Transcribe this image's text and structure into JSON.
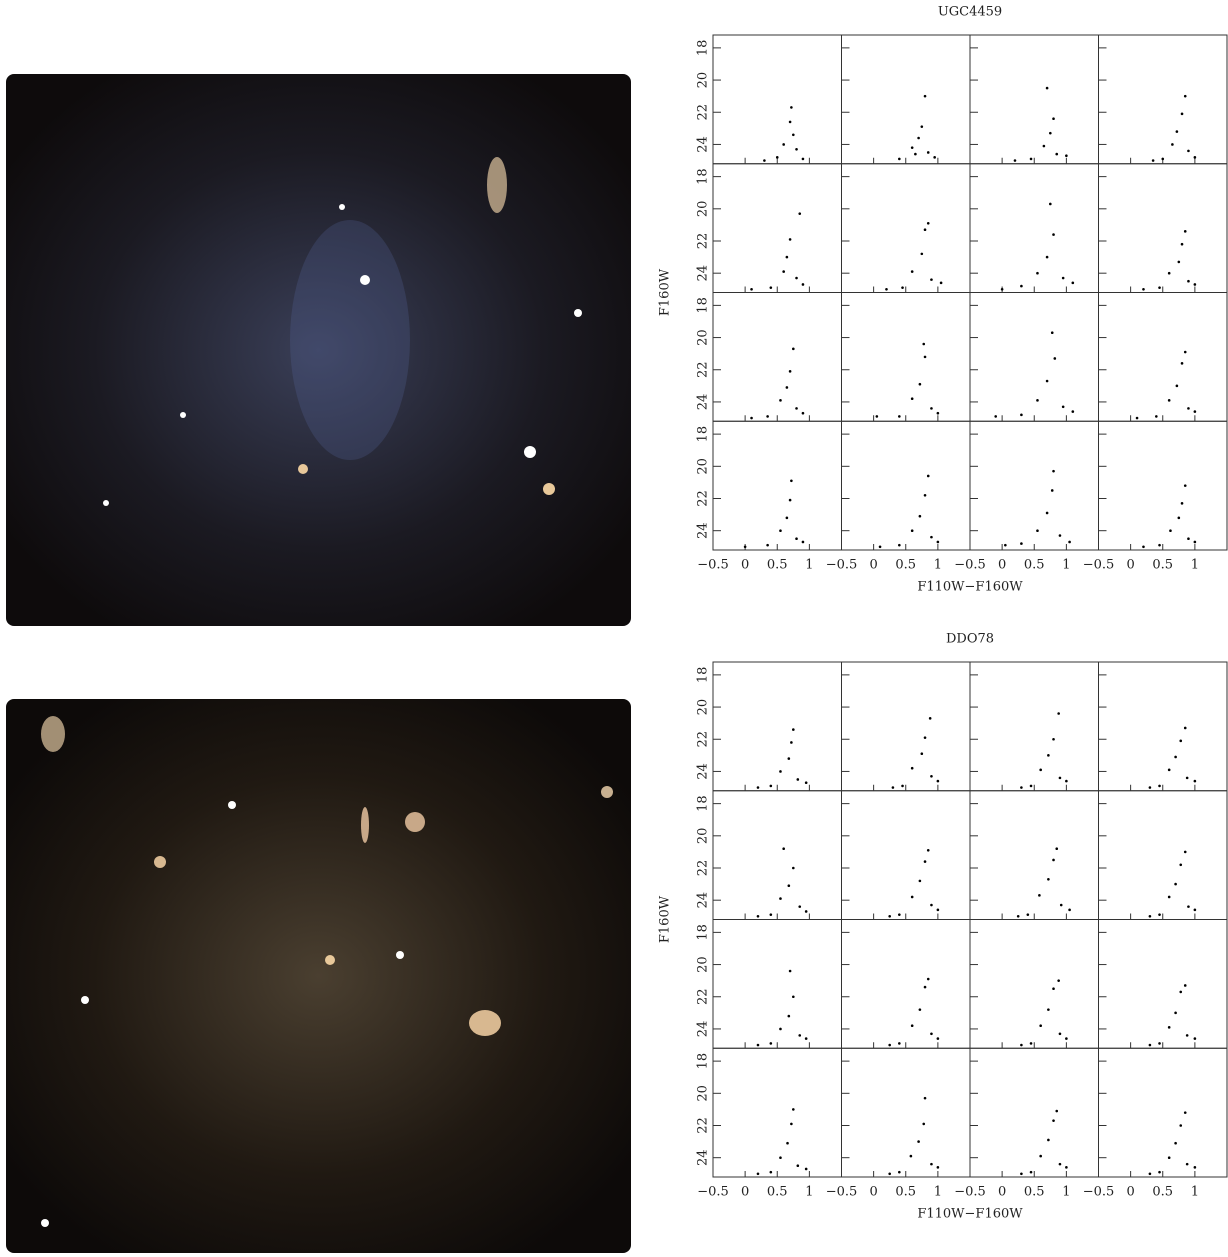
{
  "chart_data": [
    {
      "type": "scatter",
      "title": "UGC4459",
      "xlabel": "F110W−F160W",
      "ylabel": "F160W",
      "xlim": [
        -0.5,
        1.5
      ],
      "ylim": [
        17.2,
        25.2
      ],
      "y_inverted": true,
      "xticks": [
        {
          "value": -0.5,
          "label": "−0.5"
        },
        0,
        0.5,
        1
      ],
      "yticks": [
        18,
        20,
        22,
        24
      ],
      "panels": [
        {
          "x": [
            0.7,
            0.75,
            0.6,
            0.8,
            0.5,
            0.9,
            0.3,
            0.72
          ],
          "y": [
            22.6,
            23.4,
            24.0,
            24.3,
            24.8,
            24.9,
            25.0,
            21.7
          ]
        },
        {
          "x": [
            0.75,
            0.7,
            0.6,
            0.85,
            0.4,
            0.95,
            0.65,
            0.8
          ],
          "y": [
            22.9,
            23.6,
            24.2,
            24.5,
            24.9,
            24.8,
            24.6,
            21.0
          ]
        },
        {
          "x": [
            0.8,
            0.75,
            0.65,
            0.85,
            0.45,
            1.0,
            0.2,
            0.7
          ],
          "y": [
            22.4,
            23.3,
            24.1,
            24.6,
            24.9,
            24.7,
            25.0,
            20.5
          ]
        },
        {
          "x": [
            0.8,
            0.72,
            0.65,
            0.9,
            0.5,
            1.0,
            0.35,
            0.85
          ],
          "y": [
            22.1,
            23.2,
            24.0,
            24.4,
            24.9,
            24.8,
            25.0,
            21.0
          ]
        },
        {
          "x": [
            0.7,
            0.65,
            0.6,
            0.8,
            0.4,
            0.9,
            0.1,
            0.85
          ],
          "y": [
            21.9,
            23.0,
            23.9,
            24.3,
            24.9,
            24.7,
            25.0,
            20.3
          ]
        },
        {
          "x": [
            0.8,
            0.75,
            0.6,
            0.9,
            0.45,
            1.05,
            0.2,
            0.85
          ],
          "y": [
            21.3,
            22.8,
            23.9,
            24.4,
            24.9,
            24.6,
            25.0,
            20.9
          ]
        },
        {
          "x": [
            0.8,
            0.7,
            0.55,
            0.95,
            0.3,
            1.1,
            0.0,
            0.75
          ],
          "y": [
            21.6,
            23.0,
            24.0,
            24.3,
            24.8,
            24.6,
            25.0,
            19.7
          ]
        },
        {
          "x": [
            0.8,
            0.75,
            0.6,
            0.9,
            0.45,
            1.0,
            0.2,
            0.85
          ],
          "y": [
            22.2,
            23.3,
            24.0,
            24.5,
            24.9,
            24.7,
            25.0,
            21.4
          ]
        },
        {
          "x": [
            0.7,
            0.65,
            0.55,
            0.8,
            0.35,
            0.9,
            0.1,
            0.75
          ],
          "y": [
            22.1,
            23.1,
            23.9,
            24.4,
            24.9,
            24.7,
            25.0,
            20.7
          ]
        },
        {
          "x": [
            0.8,
            0.72,
            0.6,
            0.9,
            0.4,
            1.0,
            0.05,
            0.78
          ],
          "y": [
            21.2,
            22.9,
            23.8,
            24.4,
            24.9,
            24.7,
            24.9,
            20.4
          ]
        },
        {
          "x": [
            0.82,
            0.7,
            0.55,
            0.95,
            0.3,
            1.1,
            -0.1,
            0.78
          ],
          "y": [
            21.3,
            22.7,
            23.9,
            24.3,
            24.8,
            24.6,
            24.9,
            19.7
          ]
        },
        {
          "x": [
            0.8,
            0.72,
            0.6,
            0.9,
            0.4,
            1.0,
            0.1,
            0.85
          ],
          "y": [
            21.6,
            23.0,
            23.9,
            24.4,
            24.9,
            24.6,
            25.0,
            20.9
          ]
        },
        {
          "x": [
            0.7,
            0.65,
            0.55,
            0.8,
            0.35,
            0.9,
            0.0,
            0.72
          ],
          "y": [
            22.1,
            23.2,
            24.0,
            24.5,
            24.9,
            24.7,
            25.0,
            20.9
          ]
        },
        {
          "x": [
            0.8,
            0.72,
            0.6,
            0.9,
            0.4,
            1.0,
            0.1,
            0.85
          ],
          "y": [
            21.8,
            23.1,
            24.0,
            24.4,
            24.9,
            24.7,
            25.0,
            20.6
          ]
        },
        {
          "x": [
            0.78,
            0.7,
            0.55,
            0.9,
            0.3,
            1.05,
            0.05,
            0.8
          ],
          "y": [
            21.5,
            22.9,
            24.0,
            24.3,
            24.8,
            24.7,
            24.9,
            20.3
          ]
        },
        {
          "x": [
            0.8,
            0.75,
            0.62,
            0.9,
            0.45,
            1.0,
            0.2,
            0.85
          ],
          "y": [
            22.3,
            23.2,
            24.0,
            24.5,
            24.9,
            24.7,
            25.0,
            21.2
          ]
        }
      ]
    },
    {
      "type": "scatter",
      "title": "DDO78",
      "xlabel": "F110W−F160W",
      "ylabel": "F160W",
      "xlim": [
        -0.5,
        1.5
      ],
      "ylim": [
        17.2,
        25.2
      ],
      "y_inverted": true,
      "xticks": [
        {
          "value": -0.5,
          "label": "−0.5"
        },
        0,
        0.5,
        1
      ],
      "yticks": [
        18,
        20,
        22,
        24
      ],
      "panels": [
        {
          "x": [
            0.72,
            0.68,
            0.55,
            0.82,
            0.4,
            0.95,
            0.2,
            0.75
          ],
          "y": [
            22.2,
            23.2,
            24.0,
            24.5,
            24.9,
            24.7,
            25.0,
            21.4
          ]
        },
        {
          "x": [
            0.8,
            0.75,
            0.6,
            0.9,
            0.45,
            1.0,
            0.3,
            0.88
          ],
          "y": [
            21.9,
            22.9,
            23.8,
            24.3,
            24.9,
            24.6,
            25.0,
            20.7
          ]
        },
        {
          "x": [
            0.8,
            0.72,
            0.6,
            0.9,
            0.45,
            1.0,
            0.3,
            0.88
          ],
          "y": [
            22.0,
            23.0,
            23.9,
            24.4,
            24.9,
            24.6,
            25.0,
            20.4
          ]
        },
        {
          "x": [
            0.78,
            0.7,
            0.6,
            0.88,
            0.45,
            1.0,
            0.3,
            0.85
          ],
          "y": [
            22.1,
            23.1,
            23.9,
            24.4,
            24.9,
            24.6,
            25.0,
            21.3
          ]
        },
        {
          "x": [
            0.75,
            0.68,
            0.55,
            0.85,
            0.4,
            0.95,
            0.2,
            0.6
          ],
          "y": [
            22.0,
            23.1,
            23.9,
            24.4,
            24.9,
            24.7,
            25.0,
            20.8
          ]
        },
        {
          "x": [
            0.8,
            0.72,
            0.6,
            0.9,
            0.4,
            1.0,
            0.25,
            0.85
          ],
          "y": [
            21.6,
            22.8,
            23.8,
            24.3,
            24.9,
            24.6,
            25.0,
            20.9
          ]
        },
        {
          "x": [
            0.8,
            0.72,
            0.58,
            0.92,
            0.4,
            1.05,
            0.25,
            0.85
          ],
          "y": [
            21.5,
            22.7,
            23.7,
            24.3,
            24.9,
            24.6,
            25.0,
            20.8
          ]
        },
        {
          "x": [
            0.78,
            0.7,
            0.6,
            0.9,
            0.45,
            1.0,
            0.3,
            0.85
          ],
          "y": [
            21.8,
            23.0,
            23.8,
            24.4,
            24.9,
            24.6,
            25.0,
            21.0
          ]
        },
        {
          "x": [
            0.75,
            0.68,
            0.55,
            0.85,
            0.4,
            0.95,
            0.2,
            0.7
          ],
          "y": [
            22.0,
            23.2,
            24.0,
            24.4,
            24.9,
            24.6,
            25.0,
            20.4
          ]
        },
        {
          "x": [
            0.8,
            0.72,
            0.6,
            0.9,
            0.4,
            1.0,
            0.25,
            0.85
          ],
          "y": [
            21.4,
            22.8,
            23.8,
            24.3,
            24.9,
            24.6,
            25.0,
            20.9
          ]
        },
        {
          "x": [
            0.8,
            0.72,
            0.6,
            0.9,
            0.45,
            1.0,
            0.3,
            0.88
          ],
          "y": [
            21.5,
            22.8,
            23.8,
            24.3,
            24.9,
            24.6,
            25.0,
            21.0
          ]
        },
        {
          "x": [
            0.78,
            0.7,
            0.6,
            0.88,
            0.45,
            1.0,
            0.3,
            0.85
          ],
          "y": [
            21.7,
            23.0,
            23.9,
            24.4,
            24.9,
            24.6,
            25.0,
            21.3
          ]
        },
        {
          "x": [
            0.72,
            0.66,
            0.55,
            0.82,
            0.4,
            0.95,
            0.2,
            0.75
          ],
          "y": [
            21.9,
            23.1,
            24.0,
            24.5,
            24.9,
            24.7,
            25.0,
            21.0
          ]
        },
        {
          "x": [
            0.78,
            0.7,
            0.58,
            0.9,
            0.4,
            1.0,
            0.25,
            0.8
          ],
          "y": [
            21.9,
            23.0,
            23.9,
            24.4,
            24.9,
            24.6,
            25.0,
            20.3
          ]
        },
        {
          "x": [
            0.8,
            0.72,
            0.6,
            0.9,
            0.45,
            1.0,
            0.3,
            0.85
          ],
          "y": [
            21.7,
            22.9,
            23.9,
            24.4,
            24.9,
            24.6,
            25.0,
            21.1
          ]
        },
        {
          "x": [
            0.78,
            0.7,
            0.6,
            0.88,
            0.45,
            1.0,
            0.3,
            0.85
          ],
          "y": [
            22.0,
            23.1,
            24.0,
            24.4,
            24.9,
            24.6,
            25.0,
            21.2
          ]
        }
      ]
    }
  ]
}
